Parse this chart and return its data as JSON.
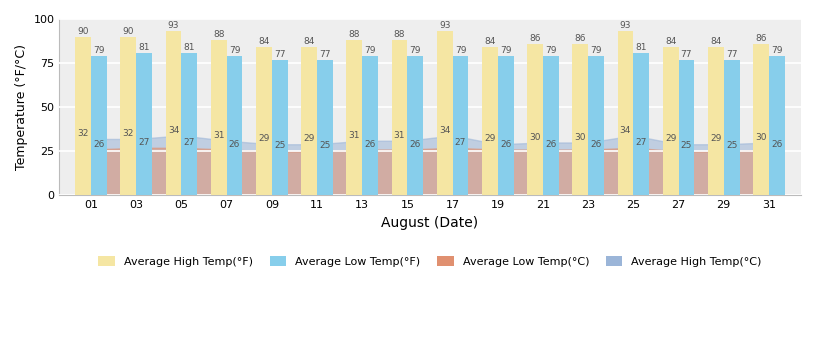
{
  "date_labels": [
    "01",
    "03",
    "05",
    "07",
    "09",
    "11",
    "13",
    "15",
    "17",
    "19",
    "21",
    "23",
    "25",
    "27",
    "29",
    "31"
  ],
  "high_F": [
    90,
    90,
    93,
    88,
    84,
    84,
    88,
    88,
    93,
    84,
    86,
    86,
    93,
    84,
    84,
    86
  ],
  "low_F": [
    79,
    81,
    81,
    79,
    77,
    77,
    79,
    79,
    79,
    79,
    79,
    79,
    81,
    77,
    77,
    79
  ],
  "high_C": [
    32,
    32,
    34,
    31,
    29,
    29,
    31,
    31,
    34,
    29,
    30,
    30,
    34,
    29,
    29,
    30
  ],
  "low_C": [
    26,
    27,
    27,
    26,
    25,
    25,
    26,
    26,
    27,
    26,
    26,
    26,
    27,
    25,
    25,
    26
  ],
  "color_high_F": "#F5E6A3",
  "color_low_F": "#87CEEB",
  "color_low_C": "#E09070",
  "color_high_C": "#9BB5D8",
  "xlabel": "August (Date)",
  "ylabel": "Temperature (°F/°C)",
  "ylim": [
    0,
    100
  ],
  "yticks": [
    0,
    25,
    50,
    75,
    100
  ],
  "bg_color": "#eeeeee",
  "legend_labels": [
    "Average High Temp(°F)",
    "Average Low Temp(°F)",
    "Average Low Temp(°C)",
    "Average High Temp(°C)"
  ]
}
